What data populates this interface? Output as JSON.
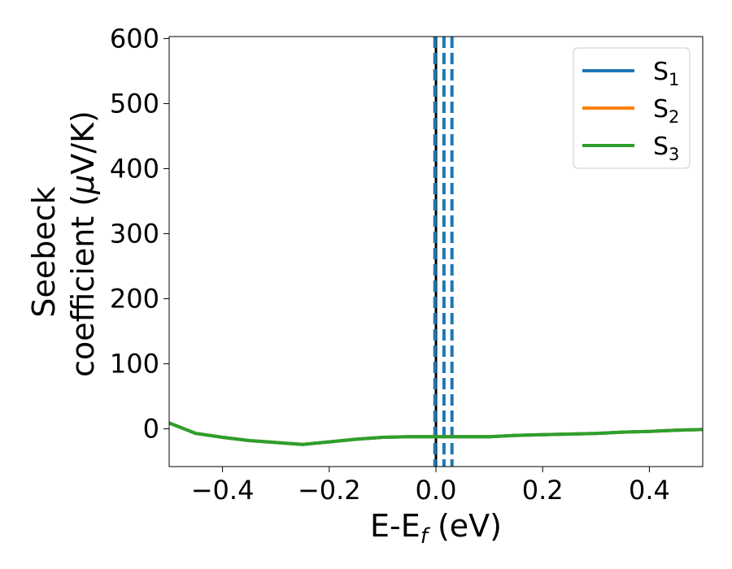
{
  "chart_data": {
    "type": "line",
    "xlabel_main": "E-E",
    "xlabel_sub": "f",
    "xlabel_unit": " (eV)",
    "ylabel_line1": "Seebeck",
    "ylabel_line2_pre": "coefficient  (",
    "ylabel_mu": "μ",
    "ylabel_line2_post": "V/K)",
    "xlim": [
      -0.5,
      0.5
    ],
    "ylim": [
      -58,
      603
    ],
    "x_ticks": [
      -0.4,
      -0.2,
      0.0,
      0.2,
      0.4
    ],
    "x_tick_labels": [
      "−0.4",
      "−0.2",
      "0.0",
      "0.2",
      "0.4"
    ],
    "y_ticks": [
      0,
      100,
      200,
      300,
      400,
      500,
      600
    ],
    "y_tick_labels": [
      "0",
      "100",
      "200",
      "300",
      "400",
      "500",
      "600"
    ],
    "legend_position": "top-right",
    "vertical_lines": [
      {
        "x": 0.0,
        "color": "#000000",
        "style": "solid"
      },
      {
        "x": -0.002,
        "color": "#1f77b4",
        "style": "dashed"
      },
      {
        "x": 0.015,
        "color": "#1f77b4",
        "style": "dashed"
      },
      {
        "x": 0.03,
        "color": "#1f77b4",
        "style": "dashed"
      }
    ],
    "series": [
      {
        "name": "S",
        "sub": "1",
        "color": "#1f77b4",
        "x": [
          -0.5,
          -0.45,
          -0.4,
          -0.35,
          -0.3,
          -0.25,
          -0.2,
          -0.15,
          -0.1,
          -0.05,
          0.0,
          0.05,
          0.1,
          0.15,
          0.2,
          0.25,
          0.3,
          0.35,
          0.4,
          0.45,
          0.5
        ],
        "y": [
          9,
          -7,
          -13,
          -18,
          -21,
          -24,
          -20,
          -16,
          -13,
          -12,
          -12,
          -12,
          -12,
          -10,
          -9,
          -8,
          -7,
          -5,
          -4,
          -2,
          -1
        ]
      },
      {
        "name": "S",
        "sub": "2",
        "color": "#ff7f0e",
        "x": [
          -0.5,
          -0.45,
          -0.4,
          -0.35,
          -0.3,
          -0.25,
          -0.2,
          -0.15,
          -0.1,
          -0.05,
          0.0,
          0.05,
          0.1,
          0.15,
          0.2,
          0.25,
          0.3,
          0.35,
          0.4,
          0.45,
          0.5
        ],
        "y": [
          9,
          -7,
          -13,
          -18,
          -21,
          -24,
          -20,
          -16,
          -13,
          -12,
          -12,
          -12,
          -12,
          -10,
          -9,
          -8,
          -7,
          -5,
          -4,
          -2,
          -1
        ]
      },
      {
        "name": "S",
        "sub": "3",
        "color": "#2ca02c",
        "x": [
          -0.5,
          -0.45,
          -0.4,
          -0.35,
          -0.3,
          -0.25,
          -0.2,
          -0.15,
          -0.1,
          -0.05,
          0.0,
          0.05,
          0.1,
          0.15,
          0.2,
          0.25,
          0.3,
          0.35,
          0.4,
          0.45,
          0.5
        ],
        "y": [
          9,
          -7,
          -13,
          -18,
          -21,
          -24,
          -20,
          -16,
          -13,
          -12,
          -12,
          -12,
          -12,
          -10,
          -9,
          -8,
          -7,
          -5,
          -4,
          -2,
          -1
        ]
      }
    ]
  }
}
